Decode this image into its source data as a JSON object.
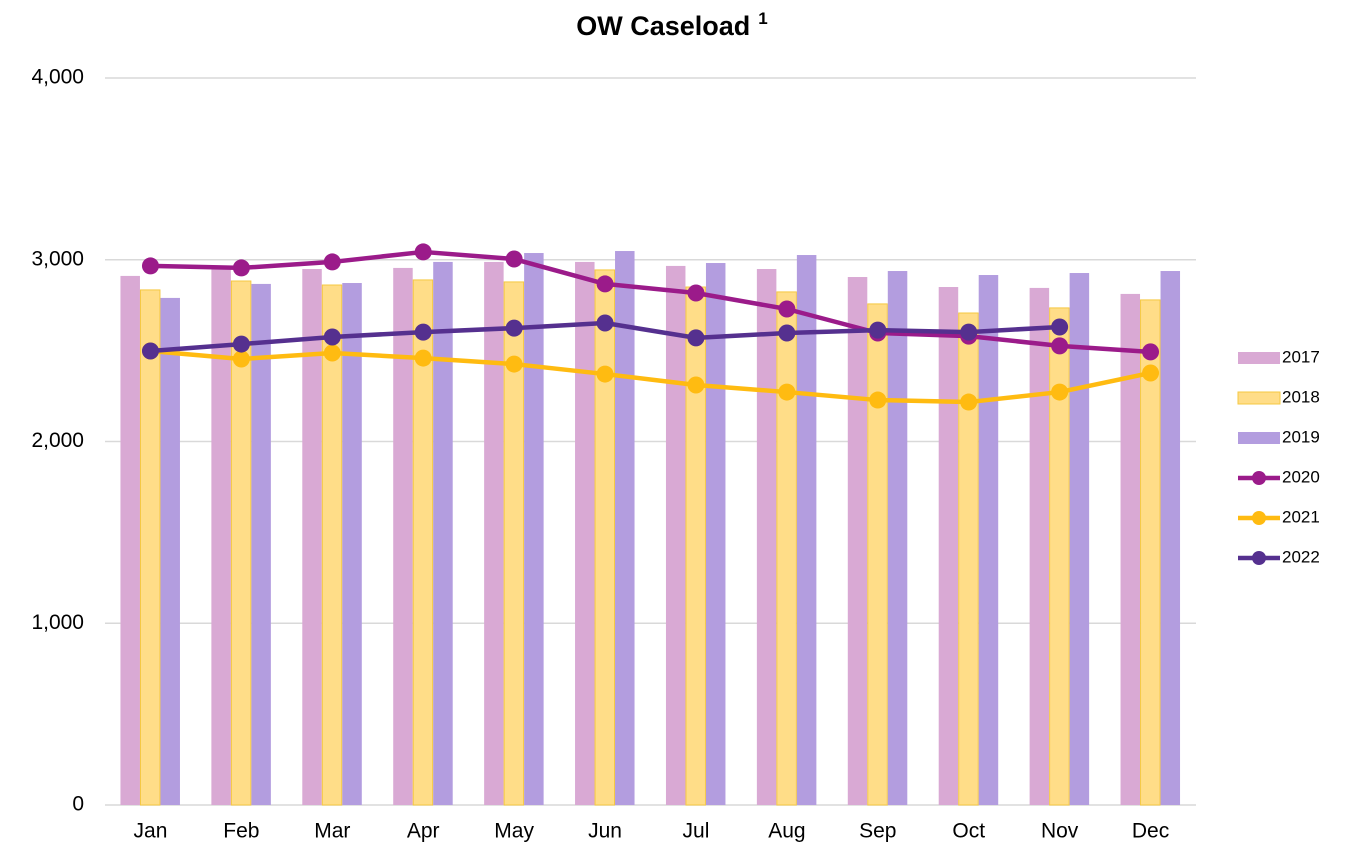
{
  "chart_data": {
    "type": "combo",
    "title": "OW Caseload",
    "title_note": "1",
    "categories": [
      "Jan",
      "Feb",
      "Mar",
      "Apr",
      "May",
      "Jun",
      "Jul",
      "Aug",
      "Sep",
      "Oct",
      "Nov",
      "Dec"
    ],
    "ylim": [
      0,
      4000
    ],
    "yticks": [
      0,
      {
        "value": 1000,
        "label": "1,000"
      },
      {
        "value": 2000,
        "label": "2,000"
      },
      {
        "value": 3000,
        "label": "3,000"
      },
      {
        "value": 4000,
        "label": "4,000"
      }
    ],
    "grid": true,
    "legend": "right",
    "series": [
      {
        "name": "2017",
        "type": "bar",
        "color": "#d9a9d4",
        "values": [
          2911,
          2955,
          2949,
          2955,
          2988,
          2988,
          2966,
          2949,
          2905,
          2850,
          2845,
          2812
        ]
      },
      {
        "name": "2018",
        "type": "bar",
        "color": "#ffdd88",
        "values": [
          2834,
          2883,
          2861,
          2889,
          2878,
          2944,
          2850,
          2823,
          2757,
          2707,
          2735,
          2779
        ]
      },
      {
        "name": "2019",
        "type": "bar",
        "color": "#b39ddf",
        "values": [
          2790,
          2867,
          2872,
          2988,
          3037,
          3048,
          2982,
          3026,
          2938,
          2916,
          2927,
          2938
        ]
      },
      {
        "name": "2020",
        "type": "line",
        "color": "#9b1b8a",
        "values": [
          2966,
          2955,
          2988,
          3043,
          3004,
          2867,
          2817,
          2729,
          2597,
          2580,
          2526,
          2493
        ]
      },
      {
        "name": "2021",
        "type": "line",
        "color": "#ffbb11",
        "values": [
          2498,
          2454,
          2487,
          2459,
          2426,
          2371,
          2311,
          2272,
          2228,
          2217,
          2272,
          2377
        ]
      },
      {
        "name": "2022",
        "type": "line",
        "color": "#55308f",
        "values": [
          2498,
          2536,
          2575,
          2602,
          2624,
          2652,
          2570,
          2597,
          2613,
          2602,
          2630,
          null
        ]
      }
    ]
  }
}
